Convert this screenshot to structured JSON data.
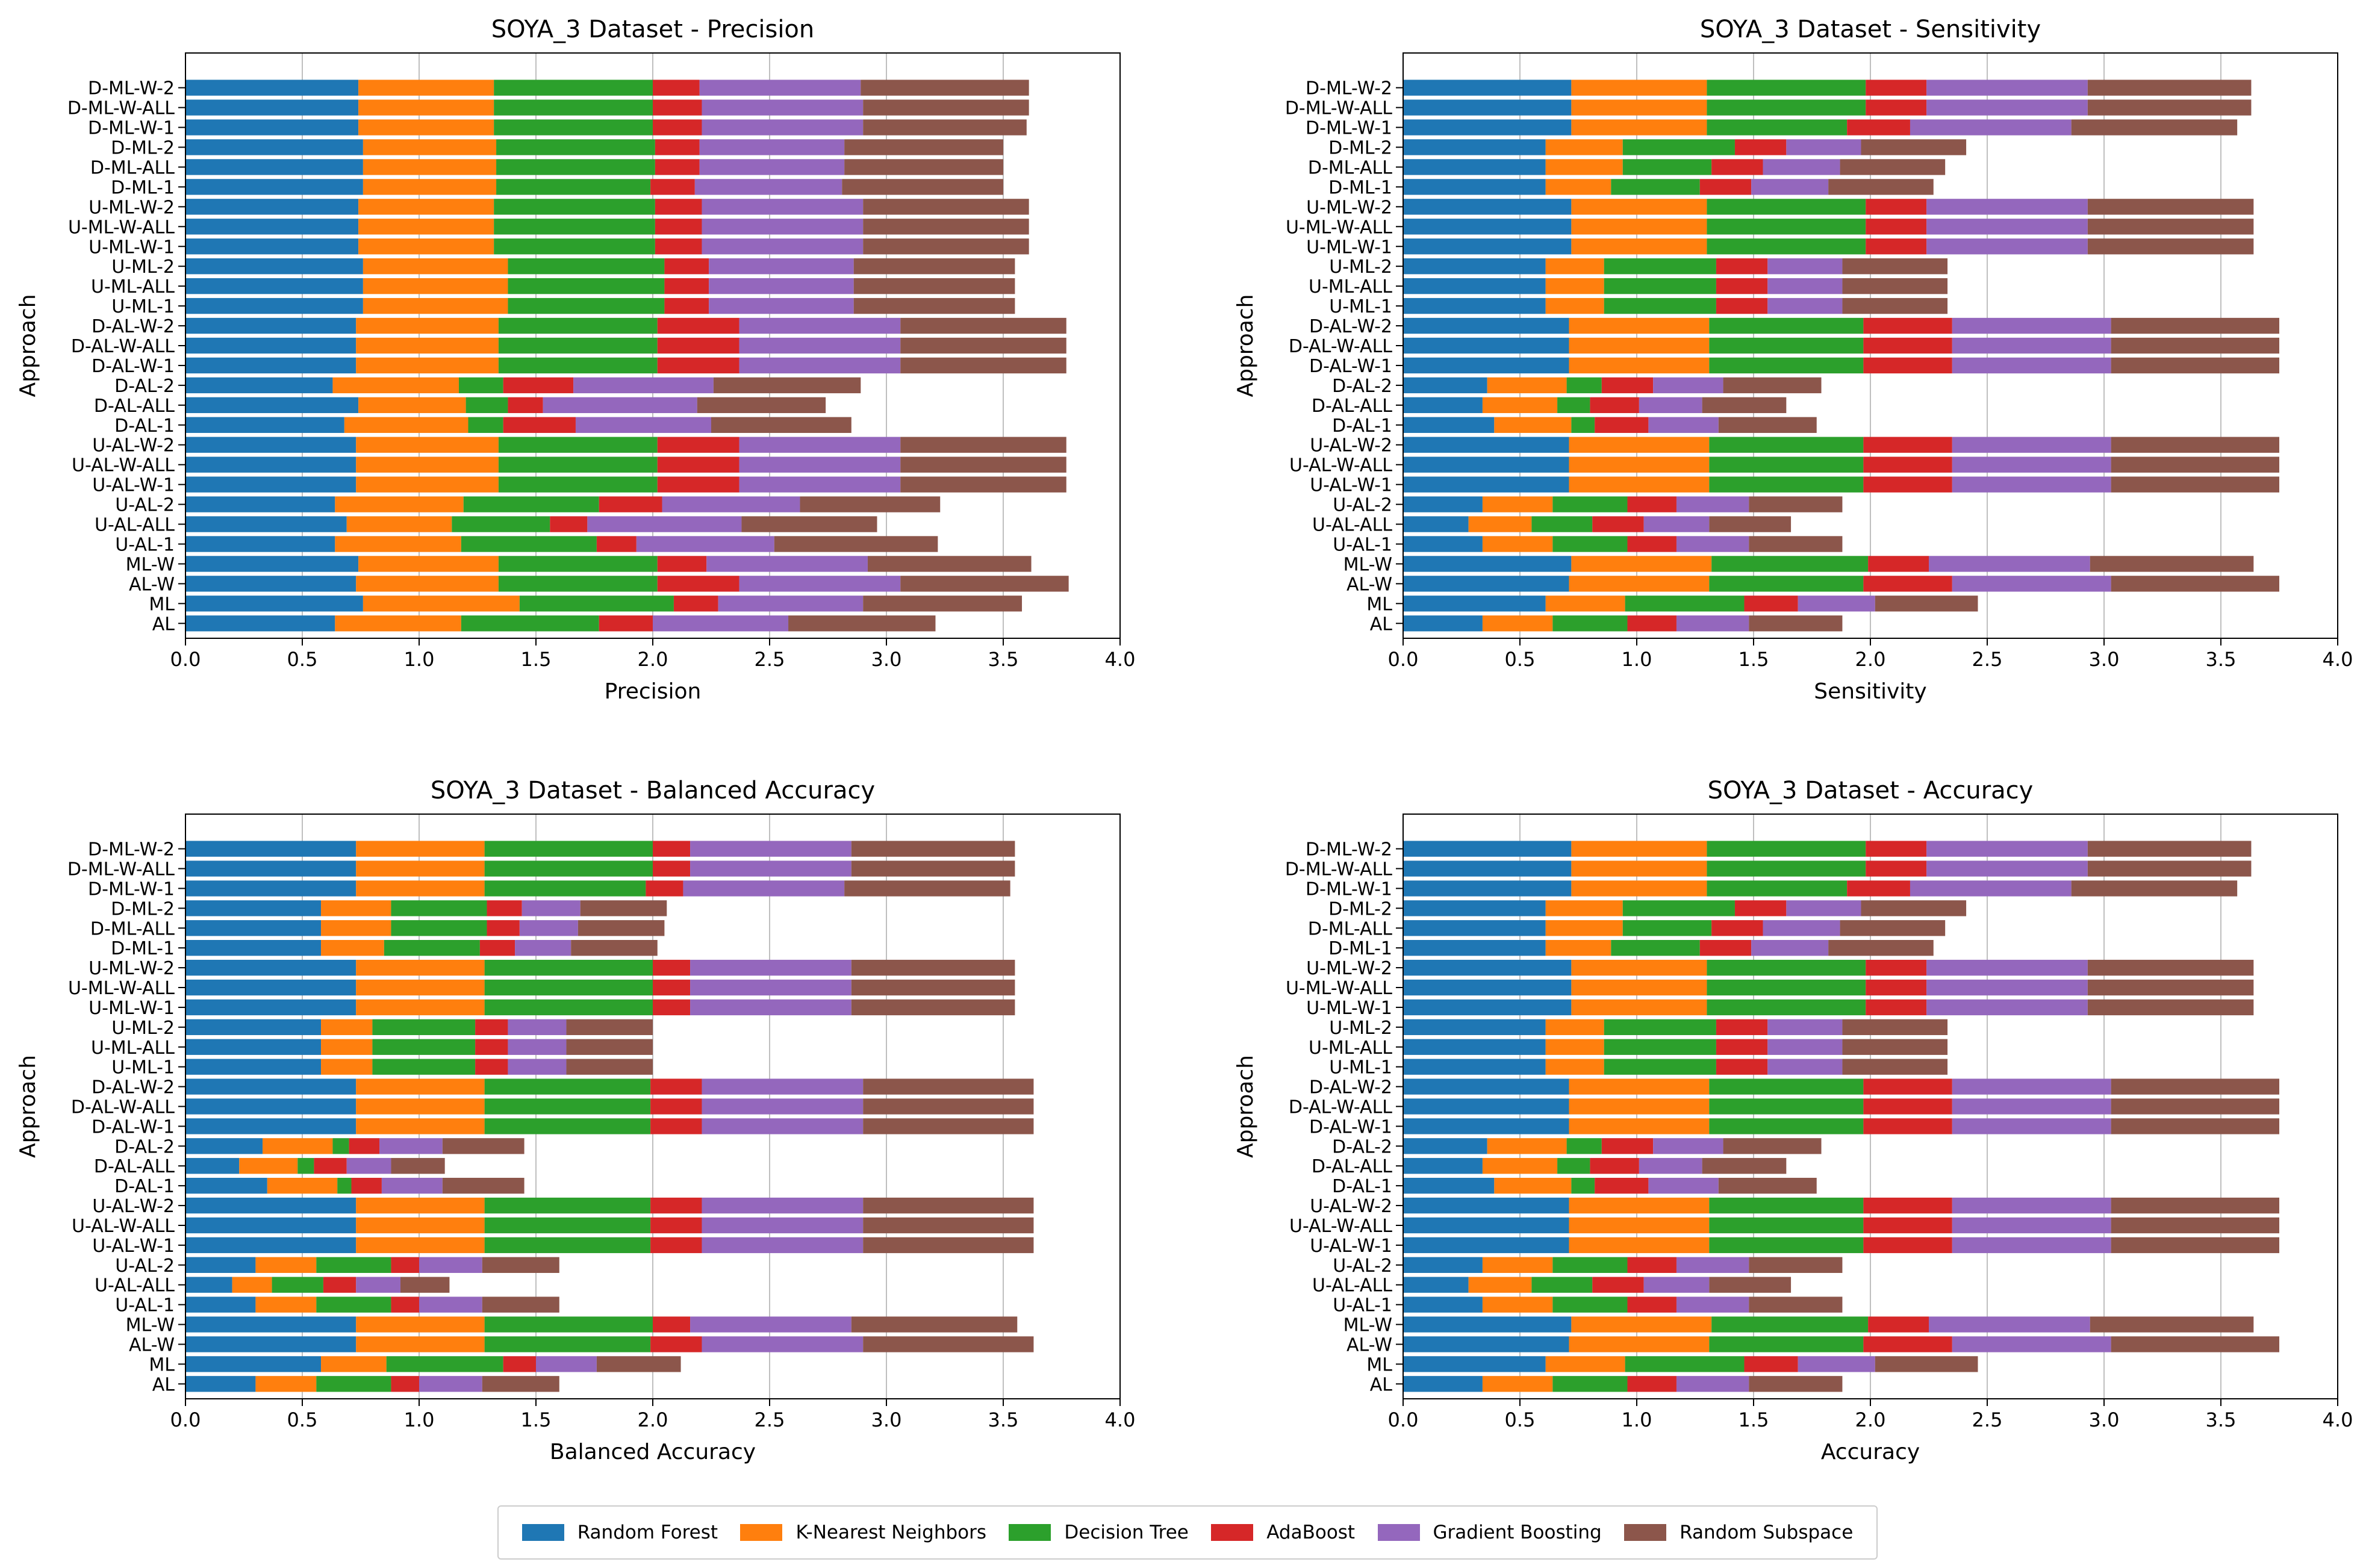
{
  "colors": [
    "#1f77b4",
    "#ff7f0e",
    "#2ca02c",
    "#d62728",
    "#9467bd",
    "#8c564b"
  ],
  "legend": {
    "items": [
      "Random Forest",
      "K-Nearest Neighbors",
      "Decision Tree",
      "AdaBoost",
      "Gradient Boosting",
      "Random Subspace"
    ]
  },
  "chart_data": [
    {
      "type": "bar",
      "orientation": "horizontal",
      "stacked": true,
      "title": "SOYA_3 Dataset - Precision",
      "xlabel": "Precision",
      "ylabel": "Approach",
      "xlim": [
        0,
        4
      ],
      "xticks": [
        "0.0",
        "0.5",
        "1.0",
        "1.5",
        "2.0",
        "2.5",
        "3.0",
        "3.5",
        "4.0"
      ],
      "grid": "vertical",
      "categories": [
        "AL",
        "ML",
        "AL-W",
        "ML-W",
        "U-AL-1",
        "U-AL-ALL",
        "U-AL-2",
        "U-AL-W-1",
        "U-AL-W-ALL",
        "U-AL-W-2",
        "D-AL-1",
        "D-AL-ALL",
        "D-AL-2",
        "D-AL-W-1",
        "D-AL-W-ALL",
        "D-AL-W-2",
        "U-ML-1",
        "U-ML-ALL",
        "U-ML-2",
        "U-ML-W-1",
        "U-ML-W-ALL",
        "U-ML-W-2",
        "D-ML-1",
        "D-ML-ALL",
        "D-ML-2",
        "D-ML-W-1",
        "D-ML-W-ALL",
        "D-ML-W-2"
      ],
      "series": [
        {
          "name": "Random Forest",
          "values": [
            0.64,
            0.76,
            0.73,
            0.74,
            0.64,
            0.69,
            0.64,
            0.73,
            0.73,
            0.73,
            0.68,
            0.74,
            0.63,
            0.73,
            0.73,
            0.73,
            0.76,
            0.76,
            0.76,
            0.74,
            0.74,
            0.74,
            0.76,
            0.76,
            0.76,
            0.74,
            0.74,
            0.74
          ]
        },
        {
          "name": "K-Nearest Neighbors",
          "values": [
            0.54,
            0.67,
            0.61,
            0.6,
            0.54,
            0.45,
            0.55,
            0.61,
            0.61,
            0.61,
            0.53,
            0.46,
            0.54,
            0.61,
            0.61,
            0.61,
            0.62,
            0.62,
            0.62,
            0.58,
            0.58,
            0.58,
            0.57,
            0.57,
            0.57,
            0.58,
            0.58,
            0.58
          ]
        },
        {
          "name": "Decision Tree",
          "values": [
            0.59,
            0.66,
            0.68,
            0.68,
            0.58,
            0.42,
            0.58,
            0.68,
            0.68,
            0.68,
            0.15,
            0.18,
            0.19,
            0.68,
            0.68,
            0.68,
            0.67,
            0.67,
            0.67,
            0.69,
            0.69,
            0.69,
            0.66,
            0.68,
            0.68,
            0.68,
            0.68,
            0.68
          ]
        },
        {
          "name": "AdaBoost",
          "values": [
            0.23,
            0.19,
            0.35,
            0.21,
            0.17,
            0.16,
            0.27,
            0.35,
            0.35,
            0.35,
            0.31,
            0.15,
            0.3,
            0.35,
            0.35,
            0.35,
            0.19,
            0.19,
            0.19,
            0.2,
            0.2,
            0.2,
            0.19,
            0.19,
            0.19,
            0.21,
            0.21,
            0.2
          ]
        },
        {
          "name": "Gradient Boosting",
          "values": [
            0.58,
            0.62,
            0.69,
            0.69,
            0.59,
            0.66,
            0.59,
            0.69,
            0.69,
            0.69,
            0.58,
            0.66,
            0.6,
            0.69,
            0.69,
            0.69,
            0.62,
            0.62,
            0.62,
            0.69,
            0.69,
            0.69,
            0.63,
            0.62,
            0.62,
            0.69,
            0.69,
            0.69
          ]
        },
        {
          "name": "Random Subspace",
          "values": [
            0.63,
            0.68,
            0.72,
            0.7,
            0.7,
            0.58,
            0.6,
            0.71,
            0.71,
            0.71,
            0.6,
            0.55,
            0.63,
            0.71,
            0.71,
            0.71,
            0.69,
            0.69,
            0.69,
            0.71,
            0.71,
            0.71,
            0.69,
            0.68,
            0.68,
            0.7,
            0.71,
            0.72
          ]
        }
      ]
    },
    {
      "type": "bar",
      "orientation": "horizontal",
      "stacked": true,
      "title": "SOYA_3 Dataset - Sensitivity",
      "xlabel": "Sensitivity",
      "ylabel": "Approach",
      "xlim": [
        0,
        4
      ],
      "xticks": [
        "0.0",
        "0.5",
        "1.0",
        "1.5",
        "2.0",
        "2.5",
        "3.0",
        "3.5",
        "4.0"
      ],
      "grid": "vertical",
      "categories": [
        "AL",
        "ML",
        "AL-W",
        "ML-W",
        "U-AL-1",
        "U-AL-ALL",
        "U-AL-2",
        "U-AL-W-1",
        "U-AL-W-ALL",
        "U-AL-W-2",
        "D-AL-1",
        "D-AL-ALL",
        "D-AL-2",
        "D-AL-W-1",
        "D-AL-W-ALL",
        "D-AL-W-2",
        "U-ML-1",
        "U-ML-ALL",
        "U-ML-2",
        "U-ML-W-1",
        "U-ML-W-ALL",
        "U-ML-W-2",
        "D-ML-1",
        "D-ML-ALL",
        "D-ML-2",
        "D-ML-W-1",
        "D-ML-W-ALL",
        "D-ML-W-2"
      ],
      "series": [
        {
          "name": "Random Forest",
          "values": [
            0.34,
            0.61,
            0.71,
            0.72,
            0.34,
            0.28,
            0.34,
            0.71,
            0.71,
            0.71,
            0.39,
            0.34,
            0.36,
            0.71,
            0.71,
            0.71,
            0.61,
            0.61,
            0.61,
            0.72,
            0.72,
            0.72,
            0.61,
            0.61,
            0.61,
            0.72,
            0.72,
            0.72
          ]
        },
        {
          "name": "K-Nearest Neighbors",
          "values": [
            0.3,
            0.34,
            0.6,
            0.6,
            0.3,
            0.27,
            0.3,
            0.6,
            0.6,
            0.6,
            0.33,
            0.32,
            0.34,
            0.6,
            0.6,
            0.6,
            0.25,
            0.25,
            0.25,
            0.58,
            0.58,
            0.58,
            0.28,
            0.33,
            0.33,
            0.58,
            0.58,
            0.58
          ]
        },
        {
          "name": "Decision Tree",
          "values": [
            0.32,
            0.51,
            0.66,
            0.67,
            0.32,
            0.26,
            0.32,
            0.66,
            0.66,
            0.66,
            0.1,
            0.14,
            0.15,
            0.66,
            0.66,
            0.66,
            0.48,
            0.48,
            0.48,
            0.68,
            0.68,
            0.68,
            0.38,
            0.38,
            0.48,
            0.6,
            0.68,
            0.68
          ]
        },
        {
          "name": "AdaBoost",
          "values": [
            0.21,
            0.23,
            0.38,
            0.26,
            0.21,
            0.22,
            0.21,
            0.38,
            0.38,
            0.38,
            0.23,
            0.21,
            0.22,
            0.38,
            0.38,
            0.38,
            0.22,
            0.22,
            0.22,
            0.26,
            0.26,
            0.26,
            0.22,
            0.22,
            0.22,
            0.27,
            0.26,
            0.26
          ]
        },
        {
          "name": "Gradient Boosting",
          "values": [
            0.31,
            0.33,
            0.68,
            0.69,
            0.31,
            0.28,
            0.31,
            0.68,
            0.68,
            0.68,
            0.3,
            0.27,
            0.3,
            0.68,
            0.68,
            0.68,
            0.32,
            0.32,
            0.32,
            0.69,
            0.69,
            0.69,
            0.33,
            0.33,
            0.32,
            0.69,
            0.69,
            0.69
          ]
        },
        {
          "name": "Random Subspace",
          "values": [
            0.4,
            0.44,
            0.72,
            0.7,
            0.4,
            0.35,
            0.4,
            0.72,
            0.72,
            0.72,
            0.42,
            0.36,
            0.42,
            0.72,
            0.72,
            0.72,
            0.45,
            0.45,
            0.45,
            0.71,
            0.71,
            0.71,
            0.45,
            0.45,
            0.45,
            0.71,
            0.7,
            0.7
          ]
        }
      ]
    },
    {
      "type": "bar",
      "orientation": "horizontal",
      "stacked": true,
      "title": "SOYA_3 Dataset - Balanced Accuracy",
      "xlabel": "Balanced Accuracy",
      "ylabel": "Approach",
      "xlim": [
        0,
        4
      ],
      "xticks": [
        "0.0",
        "0.5",
        "1.0",
        "1.5",
        "2.0",
        "2.5",
        "3.0",
        "3.5",
        "4.0"
      ],
      "grid": "vertical",
      "categories": [
        "AL",
        "ML",
        "AL-W",
        "ML-W",
        "U-AL-1",
        "U-AL-ALL",
        "U-AL-2",
        "U-AL-W-1",
        "U-AL-W-ALL",
        "U-AL-W-2",
        "D-AL-1",
        "D-AL-ALL",
        "D-AL-2",
        "D-AL-W-1",
        "D-AL-W-ALL",
        "D-AL-W-2",
        "U-ML-1",
        "U-ML-ALL",
        "U-ML-2",
        "U-ML-W-1",
        "U-ML-W-ALL",
        "U-ML-W-2",
        "D-ML-1",
        "D-ML-ALL",
        "D-ML-2",
        "D-ML-W-1",
        "D-ML-W-ALL",
        "D-ML-W-2"
      ],
      "series": [
        {
          "name": "Random Forest",
          "values": [
            0.3,
            0.58,
            0.73,
            0.73,
            0.3,
            0.2,
            0.3,
            0.73,
            0.73,
            0.73,
            0.35,
            0.23,
            0.33,
            0.73,
            0.73,
            0.73,
            0.58,
            0.58,
            0.58,
            0.73,
            0.73,
            0.73,
            0.58,
            0.58,
            0.58,
            0.73,
            0.73,
            0.73
          ]
        },
        {
          "name": "K-Nearest Neighbors",
          "values": [
            0.26,
            0.28,
            0.55,
            0.55,
            0.26,
            0.17,
            0.26,
            0.55,
            0.55,
            0.55,
            0.3,
            0.25,
            0.3,
            0.55,
            0.55,
            0.55,
            0.22,
            0.22,
            0.22,
            0.55,
            0.55,
            0.55,
            0.27,
            0.3,
            0.3,
            0.55,
            0.55,
            0.55
          ]
        },
        {
          "name": "Decision Tree",
          "values": [
            0.32,
            0.5,
            0.71,
            0.72,
            0.32,
            0.22,
            0.32,
            0.71,
            0.71,
            0.71,
            0.06,
            0.07,
            0.07,
            0.71,
            0.71,
            0.71,
            0.44,
            0.44,
            0.44,
            0.72,
            0.72,
            0.72,
            0.41,
            0.41,
            0.41,
            0.69,
            0.72,
            0.72
          ]
        },
        {
          "name": "AdaBoost",
          "values": [
            0.12,
            0.14,
            0.22,
            0.16,
            0.12,
            0.14,
            0.12,
            0.22,
            0.22,
            0.22,
            0.13,
            0.14,
            0.13,
            0.22,
            0.22,
            0.22,
            0.14,
            0.14,
            0.14,
            0.16,
            0.16,
            0.16,
            0.15,
            0.14,
            0.15,
            0.16,
            0.16,
            0.16
          ]
        },
        {
          "name": "Gradient Boosting",
          "values": [
            0.27,
            0.26,
            0.69,
            0.69,
            0.27,
            0.19,
            0.27,
            0.69,
            0.69,
            0.69,
            0.26,
            0.19,
            0.27,
            0.69,
            0.69,
            0.69,
            0.25,
            0.25,
            0.25,
            0.69,
            0.69,
            0.69,
            0.24,
            0.25,
            0.25,
            0.69,
            0.69,
            0.69
          ]
        },
        {
          "name": "Random Subspace",
          "values": [
            0.33,
            0.36,
            0.73,
            0.71,
            0.33,
            0.21,
            0.33,
            0.73,
            0.73,
            0.73,
            0.35,
            0.23,
            0.35,
            0.73,
            0.73,
            0.73,
            0.37,
            0.37,
            0.37,
            0.7,
            0.7,
            0.7,
            0.37,
            0.37,
            0.37,
            0.71,
            0.7,
            0.7
          ]
        }
      ]
    },
    {
      "type": "bar",
      "orientation": "horizontal",
      "stacked": true,
      "title": "SOYA_3 Dataset - Accuracy",
      "xlabel": "Accuracy",
      "ylabel": "Approach",
      "xlim": [
        0,
        4
      ],
      "xticks": [
        "0.0",
        "0.5",
        "1.0",
        "1.5",
        "2.0",
        "2.5",
        "3.0",
        "3.5",
        "4.0"
      ],
      "grid": "vertical",
      "categories": [
        "AL",
        "ML",
        "AL-W",
        "ML-W",
        "U-AL-1",
        "U-AL-ALL",
        "U-AL-2",
        "U-AL-W-1",
        "U-AL-W-ALL",
        "U-AL-W-2",
        "D-AL-1",
        "D-AL-ALL",
        "D-AL-2",
        "D-AL-W-1",
        "D-AL-W-ALL",
        "D-AL-W-2",
        "U-ML-1",
        "U-ML-ALL",
        "U-ML-2",
        "U-ML-W-1",
        "U-ML-W-ALL",
        "U-ML-W-2",
        "D-ML-1",
        "D-ML-ALL",
        "D-ML-2",
        "D-ML-W-1",
        "D-ML-W-ALL",
        "D-ML-W-2"
      ],
      "series": [
        {
          "name": "Random Forest",
          "values": [
            0.34,
            0.61,
            0.71,
            0.72,
            0.34,
            0.28,
            0.34,
            0.71,
            0.71,
            0.71,
            0.39,
            0.34,
            0.36,
            0.71,
            0.71,
            0.71,
            0.61,
            0.61,
            0.61,
            0.72,
            0.72,
            0.72,
            0.61,
            0.61,
            0.61,
            0.72,
            0.72,
            0.72
          ]
        },
        {
          "name": "K-Nearest Neighbors",
          "values": [
            0.3,
            0.34,
            0.6,
            0.6,
            0.3,
            0.27,
            0.3,
            0.6,
            0.6,
            0.6,
            0.33,
            0.32,
            0.34,
            0.6,
            0.6,
            0.6,
            0.25,
            0.25,
            0.25,
            0.58,
            0.58,
            0.58,
            0.28,
            0.33,
            0.33,
            0.58,
            0.58,
            0.58
          ]
        },
        {
          "name": "Decision Tree",
          "values": [
            0.32,
            0.51,
            0.66,
            0.67,
            0.32,
            0.26,
            0.32,
            0.66,
            0.66,
            0.66,
            0.1,
            0.14,
            0.15,
            0.66,
            0.66,
            0.66,
            0.48,
            0.48,
            0.48,
            0.68,
            0.68,
            0.68,
            0.38,
            0.38,
            0.48,
            0.6,
            0.68,
            0.68
          ]
        },
        {
          "name": "AdaBoost",
          "values": [
            0.21,
            0.23,
            0.38,
            0.26,
            0.21,
            0.22,
            0.21,
            0.38,
            0.38,
            0.38,
            0.23,
            0.21,
            0.22,
            0.38,
            0.38,
            0.38,
            0.22,
            0.22,
            0.22,
            0.26,
            0.26,
            0.26,
            0.22,
            0.22,
            0.22,
            0.27,
            0.26,
            0.26
          ]
        },
        {
          "name": "Gradient Boosting",
          "values": [
            0.31,
            0.33,
            0.68,
            0.69,
            0.31,
            0.28,
            0.31,
            0.68,
            0.68,
            0.68,
            0.3,
            0.27,
            0.3,
            0.68,
            0.68,
            0.68,
            0.32,
            0.32,
            0.32,
            0.69,
            0.69,
            0.69,
            0.33,
            0.33,
            0.32,
            0.69,
            0.69,
            0.69
          ]
        },
        {
          "name": "Random Subspace",
          "values": [
            0.4,
            0.44,
            0.72,
            0.7,
            0.4,
            0.35,
            0.4,
            0.72,
            0.72,
            0.72,
            0.42,
            0.36,
            0.42,
            0.72,
            0.72,
            0.72,
            0.45,
            0.45,
            0.45,
            0.71,
            0.71,
            0.71,
            0.45,
            0.45,
            0.45,
            0.71,
            0.7,
            0.7
          ]
        }
      ]
    }
  ]
}
